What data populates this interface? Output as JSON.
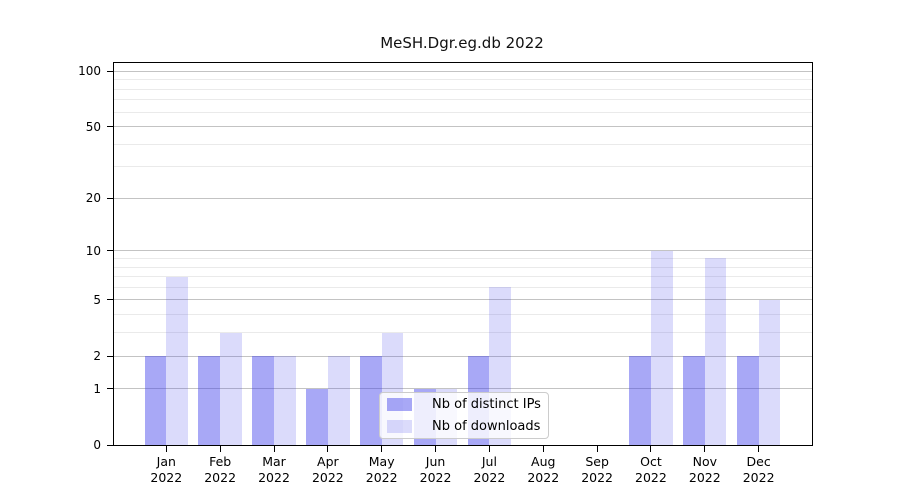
{
  "chart_data": {
    "type": "bar",
    "title": "MeSH.Dgr.eg.db 2022",
    "categories": [
      "Jan 2022",
      "Feb 2022",
      "Mar 2022",
      "Apr 2022",
      "May 2022",
      "Jun 2022",
      "Jul 2022",
      "Aug 2022",
      "Sep 2022",
      "Oct 2022",
      "Nov 2022",
      "Dec 2022"
    ],
    "series": [
      {
        "name": "Nb of distinct IPs",
        "values": [
          2,
          2,
          2,
          1,
          2,
          1,
          2,
          0,
          0,
          2,
          2,
          2
        ],
        "color": "rgba(62,62,235,0.45)"
      },
      {
        "name": "Nb of downloads",
        "values": [
          7,
          3,
          2,
          2,
          3,
          1,
          6,
          0,
          0,
          10,
          9,
          5
        ],
        "color": "rgba(62,62,235,0.19)"
      }
    ],
    "yscale": "log1p",
    "ylim": [
      0,
      110.7
    ],
    "yticks_major": [
      0,
      1,
      2,
      5,
      10,
      20,
      50,
      100
    ],
    "yticks_minor": [
      3,
      4,
      6,
      7,
      8,
      9,
      30,
      40,
      60,
      70,
      80,
      90
    ],
    "xlabel": "",
    "ylabel": "",
    "grid": "horizontal",
    "legend_position": "inside-lower-middle"
  },
  "colors": {
    "grid_major": "#c3c3c3",
    "grid_minor": "#eaeaea",
    "spine": "#000000",
    "background": "#ffffff",
    "bar_dark": "rgba(62,62,235,0.45)",
    "bar_light": "rgba(62,62,235,0.19)"
  }
}
